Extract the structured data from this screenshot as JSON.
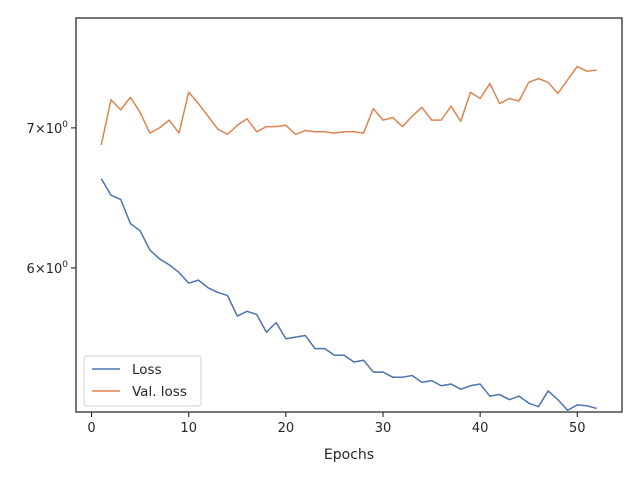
{
  "chart_data": {
    "type": "line",
    "title": "",
    "xlabel": "Epochs",
    "ylabel": "",
    "yscale": "log",
    "xlim": [
      -1.6,
      54.6
    ],
    "ylim": [
      5.12,
      7.9
    ],
    "xticks": [
      0,
      10,
      20,
      30,
      40,
      50
    ],
    "yticks": [
      {
        "value": 6,
        "label_base": "6",
        "label_exp": "0"
      },
      {
        "value": 7,
        "label_base": "7",
        "label_exp": "0"
      }
    ],
    "tick_separator": "×10",
    "grid": false,
    "legend_position": "lower-left",
    "x": [
      1,
      2,
      3,
      4,
      5,
      6,
      7,
      8,
      9,
      10,
      11,
      12,
      13,
      14,
      15,
      16,
      17,
      18,
      19,
      20,
      21,
      22,
      23,
      24,
      25,
      26,
      27,
      28,
      29,
      30,
      31,
      32,
      33,
      34,
      35,
      36,
      37,
      38,
      39,
      40,
      41,
      42,
      43,
      44,
      45,
      46,
      47,
      48,
      49,
      50,
      51,
      52
    ],
    "series": [
      {
        "name": "Loss",
        "color": "#4c72b0",
        "values": [
          6.62,
          6.5,
          6.47,
          6.3,
          6.25,
          6.12,
          6.06,
          6.02,
          5.97,
          5.9,
          5.92,
          5.87,
          5.84,
          5.82,
          5.69,
          5.72,
          5.7,
          5.59,
          5.65,
          5.55,
          5.56,
          5.57,
          5.49,
          5.49,
          5.45,
          5.45,
          5.41,
          5.42,
          5.35,
          5.35,
          5.32,
          5.32,
          5.33,
          5.29,
          5.3,
          5.27,
          5.28,
          5.25,
          5.27,
          5.28,
          5.21,
          5.22,
          5.19,
          5.21,
          5.17,
          5.15,
          5.24,
          5.19,
          5.13,
          5.16,
          5.155,
          5.14
        ]
      },
      {
        "name": "Val. loss",
        "color": "#dd8452",
        "values": [
          6.87,
          7.22,
          7.14,
          7.24,
          7.12,
          6.96,
          7.0,
          7.06,
          6.96,
          7.28,
          7.19,
          7.09,
          6.99,
          6.95,
          7.02,
          7.07,
          6.97,
          7.01,
          7.01,
          7.02,
          6.95,
          6.98,
          6.97,
          6.97,
          6.96,
          6.97,
          6.97,
          6.96,
          7.15,
          7.06,
          7.08,
          7.01,
          7.09,
          7.16,
          7.06,
          7.06,
          7.17,
          7.05,
          7.28,
          7.23,
          7.35,
          7.19,
          7.23,
          7.21,
          7.36,
          7.39,
          7.36,
          7.27,
          7.38,
          7.49,
          7.45,
          7.46
        ]
      }
    ]
  }
}
